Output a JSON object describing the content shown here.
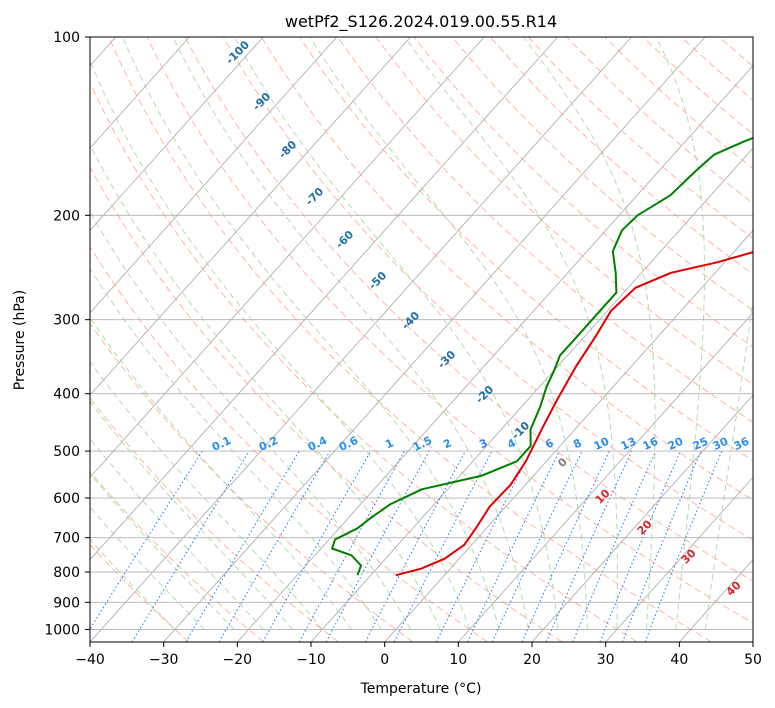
{
  "chart_data": {
    "type": "line",
    "title": "wetPf2_S126.2024.019.00.55.R14",
    "xlabel": "Temperature (°C)",
    "ylabel": "Pressure (hPa)",
    "xlim": [
      -40,
      50
    ],
    "ylim": [
      1050,
      100
    ],
    "y_scale": "log",
    "x_ticks": [
      -40,
      -30,
      -20,
      -10,
      0,
      10,
      20,
      30,
      40,
      50
    ],
    "y_ticks": [
      100,
      200,
      300,
      400,
      500,
      600,
      700,
      800,
      900,
      1000
    ],
    "grid": true,
    "series": [
      {
        "id": "temperature",
        "color": "#e00000",
        "points": [
          [
            -6.6,
            810
          ],
          [
            -4,
            790
          ],
          [
            -2,
            760
          ],
          [
            -1,
            720
          ],
          [
            -1.5,
            670
          ],
          [
            -2.2,
            620
          ],
          [
            -2,
            570
          ],
          [
            -2.8,
            520
          ],
          [
            -4.5,
            460
          ],
          [
            -6,
            410
          ],
          [
            -7.5,
            360
          ],
          [
            -8.5,
            320
          ],
          [
            -9.5,
            290
          ],
          [
            -9,
            265
          ],
          [
            -6,
            250
          ],
          [
            -1,
            240
          ],
          [
            5,
            225
          ],
          [
            10,
            205
          ],
          [
            15,
            185
          ],
          [
            21,
            163
          ],
          [
            26,
            145
          ],
          [
            30,
            132
          ],
          [
            34,
            120
          ],
          [
            38,
            110
          ],
          [
            42,
            100
          ]
        ]
      },
      {
        "id": "dewpoint",
        "color": "#008000",
        "points": [
          [
            -11.8,
            810
          ],
          [
            -12.5,
            780
          ],
          [
            -15,
            750
          ],
          [
            -18.5,
            730
          ],
          [
            -19.2,
            705
          ],
          [
            -17.5,
            675
          ],
          [
            -17,
            650
          ],
          [
            -16,
            615
          ],
          [
            -13.5,
            580
          ],
          [
            -7,
            550
          ],
          [
            -4,
            520
          ],
          [
            -4,
            490
          ],
          [
            -6,
            460
          ],
          [
            -7.5,
            420
          ],
          [
            -9,
            390
          ],
          [
            -10,
            365
          ],
          [
            -11,
            345
          ],
          [
            -11,
            320
          ],
          [
            -11,
            295
          ],
          [
            -11,
            270
          ],
          [
            -13.5,
            250
          ],
          [
            -16.5,
            230
          ],
          [
            -17.8,
            212
          ],
          [
            -17.5,
            200
          ],
          [
            -15.5,
            185
          ],
          [
            -15,
            168
          ],
          [
            -14.5,
            158
          ],
          [
            -12,
            150
          ],
          [
            -8,
            140
          ],
          [
            -3.5,
            128
          ],
          [
            -0.5,
            118
          ],
          [
            1,
            112
          ],
          [
            4,
            100
          ]
        ]
      }
    ],
    "dry_adiabats": [
      -100,
      -90,
      -80,
      -70,
      -60,
      -50,
      -40,
      -30,
      -20,
      -10
    ],
    "moist_adiabats": [
      -10,
      0,
      10,
      20,
      30,
      40
    ],
    "mixing_ratio_labels": [
      "0.1",
      "0.2",
      "0.4",
      "0.6",
      "1",
      "1.5",
      "2",
      "3",
      "4",
      "6",
      "8",
      "10",
      "13",
      "16",
      "20",
      "25",
      "30",
      "36"
    ],
    "mixing_ratio_values": [
      0.1,
      0.2,
      0.4,
      0.6,
      1,
      1.5,
      2,
      3,
      4,
      6,
      8,
      10,
      13,
      16,
      20,
      25,
      30,
      36
    ],
    "moist_label_texts": [
      "0",
      "10",
      "20",
      "30",
      "40"
    ],
    "dry_label_texts": [
      "-100",
      "-90",
      "-80",
      "-70",
      "-60",
      "-50",
      "-40",
      "-30",
      "-20",
      "-10"
    ],
    "colors": {
      "isotherm": "#b0b0b0",
      "dry_adiabat": "#f9a58d",
      "moist_adiabat": "#a6d6a0",
      "mixing_ratio": "#1f77e8",
      "dry_label": "#1f6fa8",
      "moist_label_gray": "#808080",
      "moist_label_red": "#d62728",
      "mixing_label": "#2b8fe8",
      "bg_arc": "#d8b88a"
    }
  }
}
